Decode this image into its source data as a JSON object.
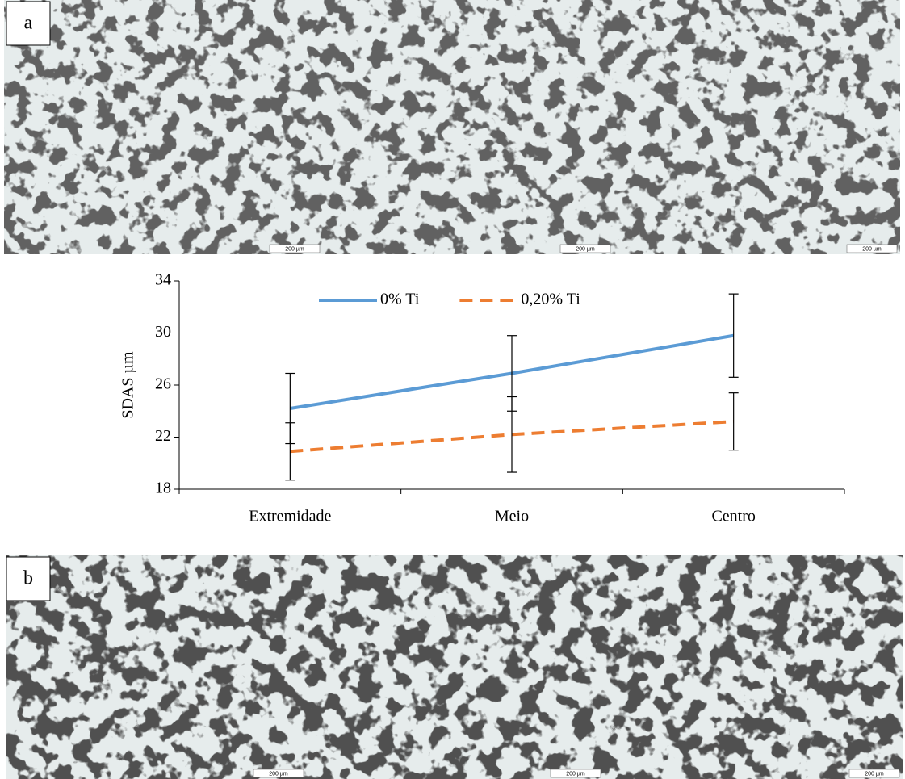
{
  "panels": [
    {
      "label": "a",
      "scale_bars": [
        "200 µm",
        "200 µm",
        "200 µm"
      ]
    },
    {
      "label": "b",
      "scale_bars": [
        "200 µm",
        "200 µm",
        "200 µm"
      ]
    }
  ],
  "chart_data": {
    "type": "line",
    "ylabel": "SDAS µm",
    "categories": [
      "Extremidade",
      "Meio",
      "Centro"
    ],
    "series": [
      {
        "name": "0% Ti",
        "color": "#5b9bd5",
        "line_style": "solid",
        "values": [
          24.2,
          26.9,
          29.8
        ],
        "errors": [
          2.7,
          2.9,
          3.2
        ]
      },
      {
        "name": "0,20% Ti",
        "color": "#ed7d31",
        "line_style": "dashed",
        "values": [
          20.9,
          22.2,
          23.2
        ],
        "errors": [
          2.2,
          2.9,
          2.2
        ]
      }
    ],
    "ylim": [
      18,
      34
    ],
    "yticks": [
      18,
      22,
      26,
      30,
      34
    ],
    "legend": "top"
  }
}
